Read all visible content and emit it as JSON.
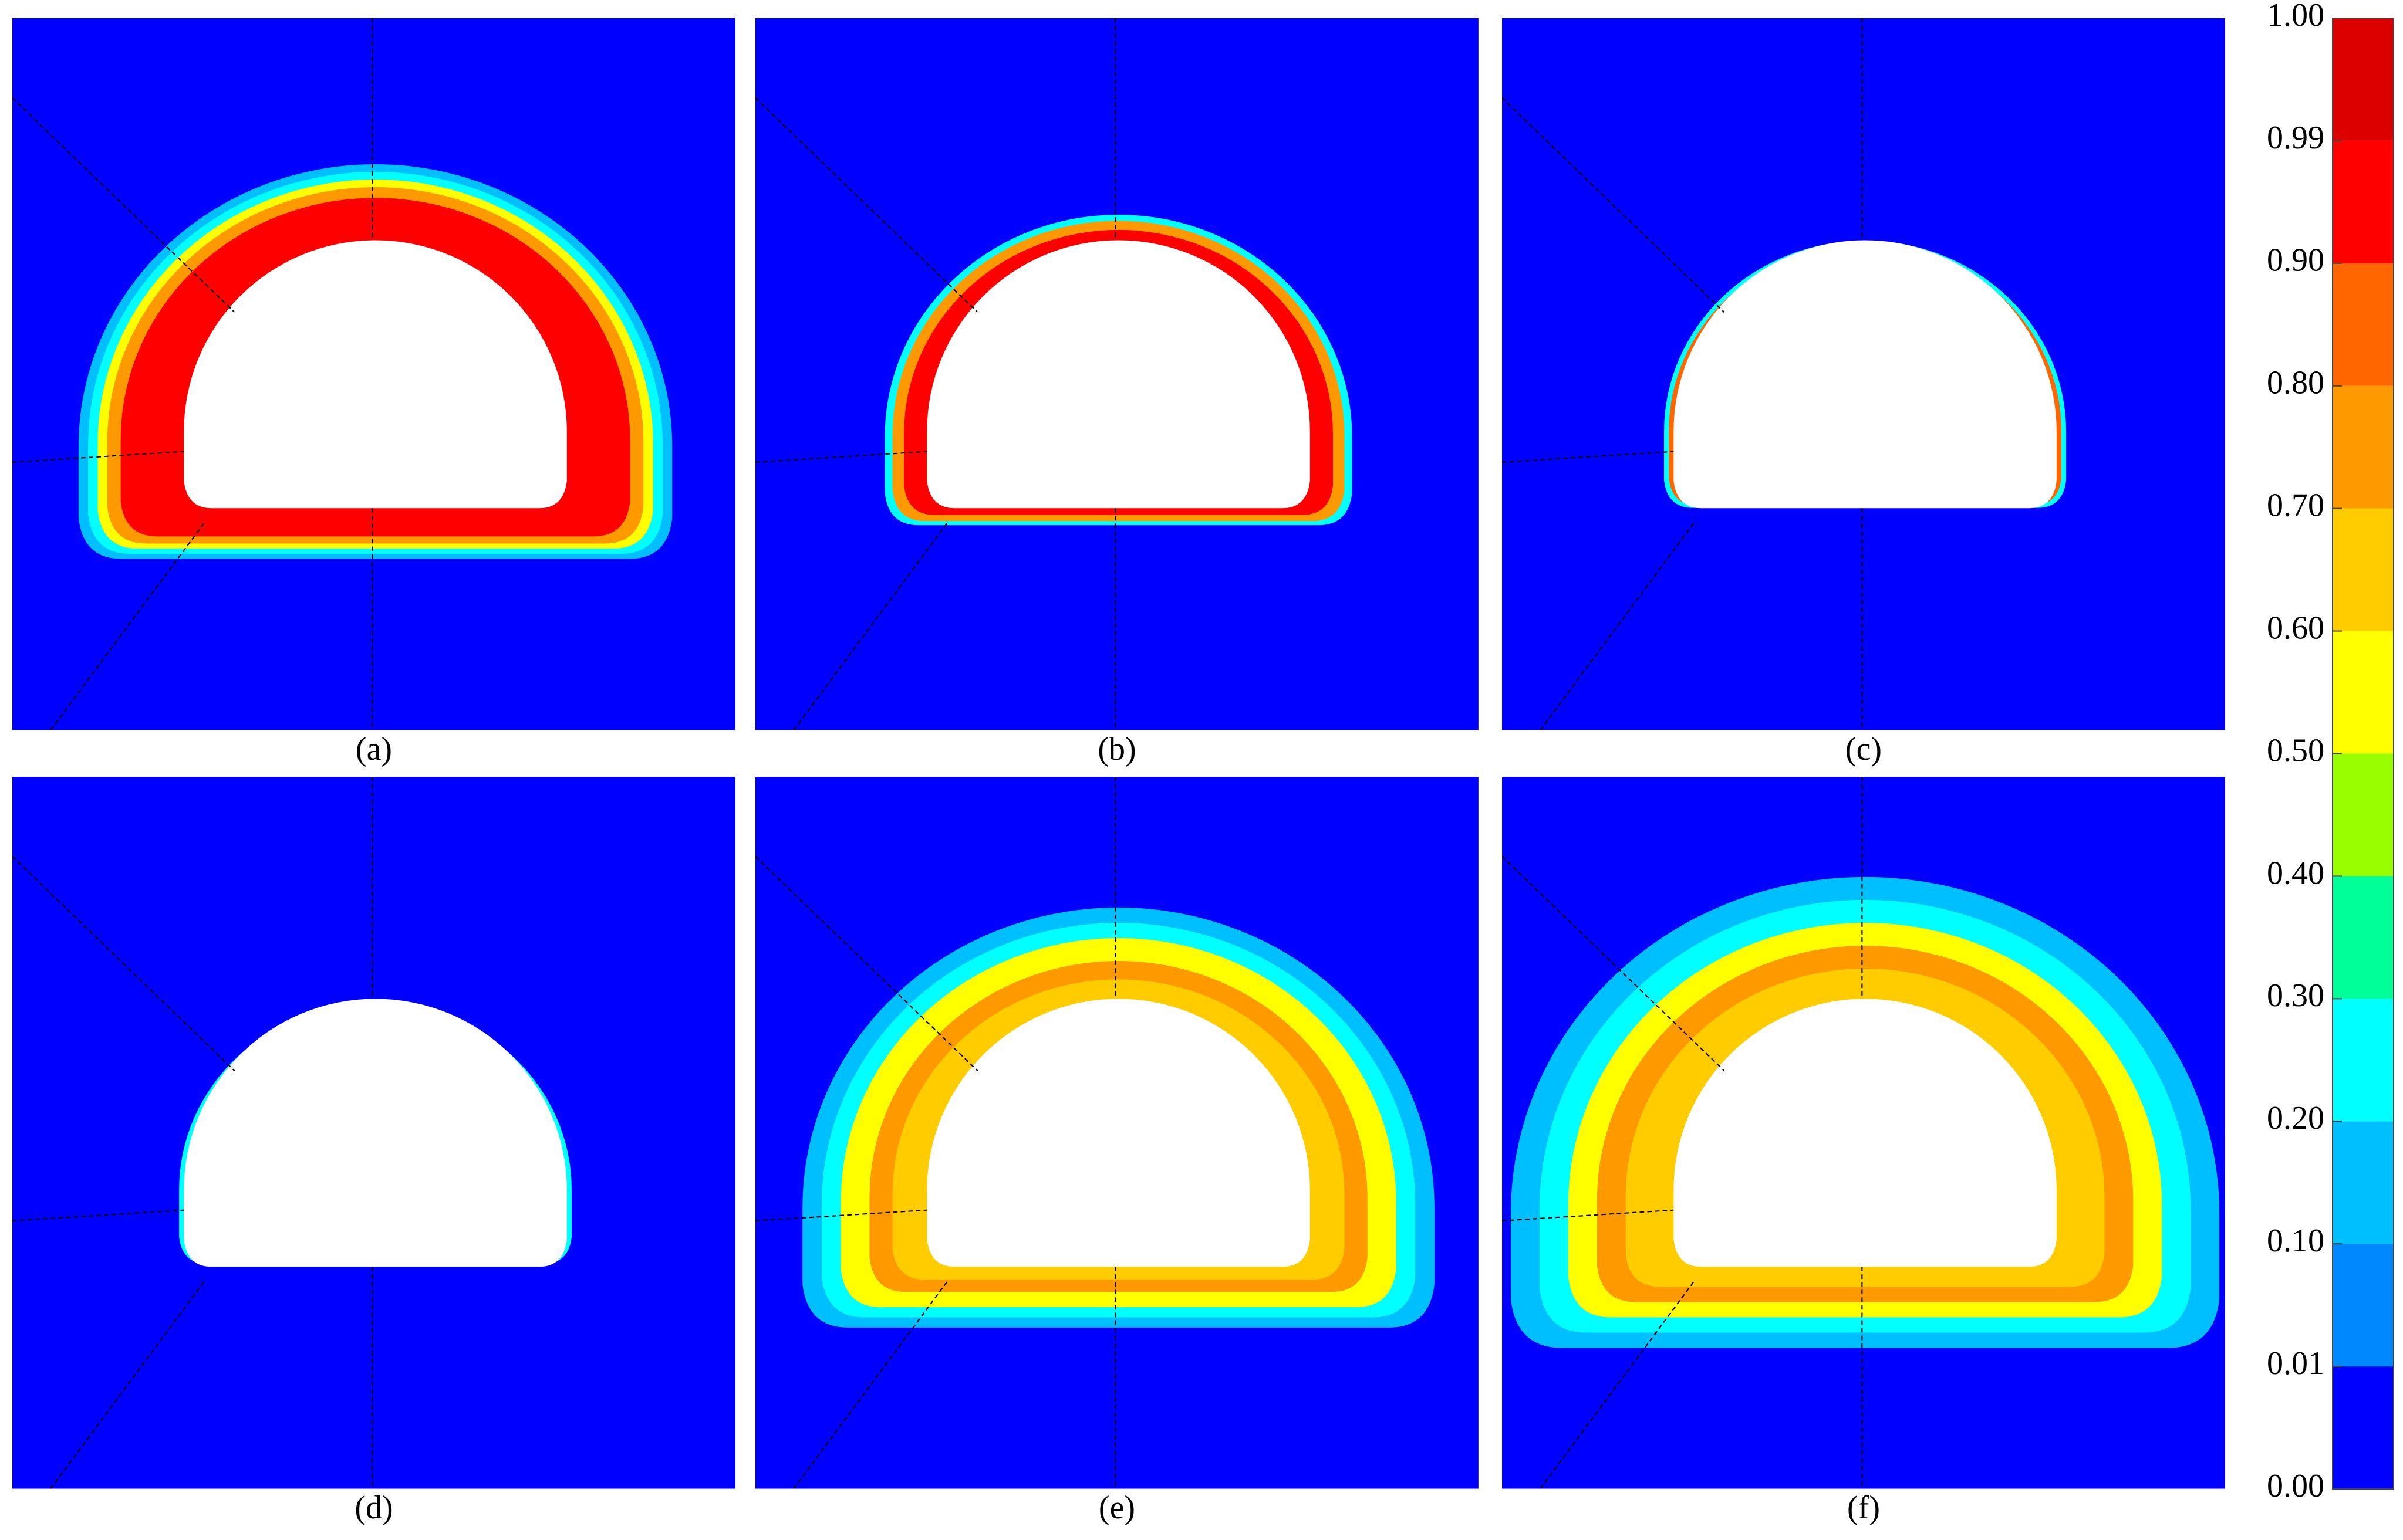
{
  "panels": [
    {
      "label": "(a)"
    },
    {
      "label": "(b)"
    },
    {
      "label": "(c)"
    },
    {
      "label": "(d)"
    },
    {
      "label": "(e)"
    },
    {
      "label": "(f)"
    }
  ],
  "colorbar": {
    "ticks": [
      "0.00",
      "0.01",
      "0.10",
      "0.20",
      "0.30",
      "0.40",
      "0.50",
      "0.60",
      "0.70",
      "0.80",
      "0.90",
      "0.99",
      "1.00"
    ],
    "colors": [
      "#0000ff",
      "#0088ff",
      "#00bfff",
      "#00ffff",
      "#00ff99",
      "#99ff00",
      "#ffff00",
      "#ffcc00",
      "#ff9900",
      "#ff6600",
      "#ff0000",
      "#dd0000"
    ]
  }
}
